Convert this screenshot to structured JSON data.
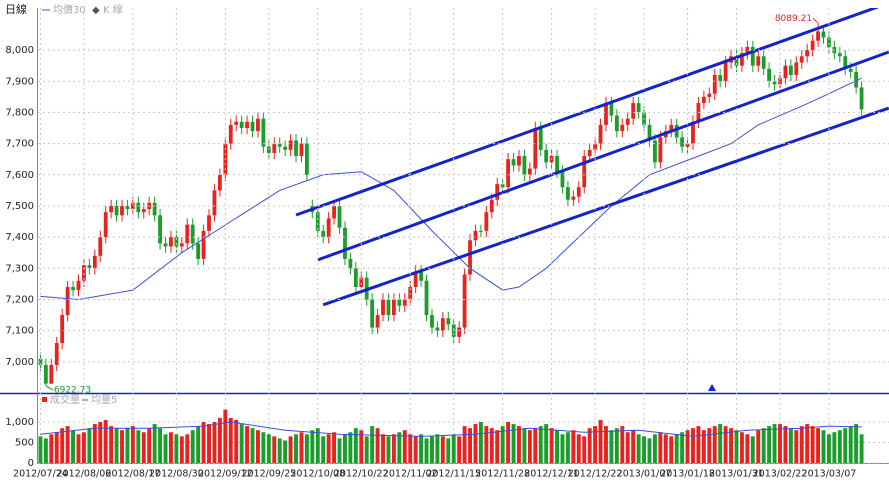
{
  "chart_data": [
    {
      "type": "candlestick",
      "title": "日線",
      "ohlc": {
        "name": "K 線",
        "up_color": "#e8231f",
        "down_color": "#1a9e2a",
        "open": [
          7010,
          6990,
          6930,
          6990,
          7060,
          7150,
          7240,
          7230,
          7260,
          7310,
          7300,
          7340,
          7400,
          7480,
          7500,
          7470,
          7500,
          7490,
          7510,
          7480,
          7490,
          7510,
          7470,
          7380,
          7370,
          7400,
          7370,
          7380,
          7440,
          7380,
          7330,
          7420,
          7470,
          7550,
          7600,
          7700,
          7760,
          7770,
          7750,
          7770,
          7740,
          7780,
          7690,
          7670,
          7700,
          7690,
          7680,
          7710,
          7660,
          7700,
          7500,
          7480,
          7420,
          7400,
          7460,
          7500,
          7430,
          7330,
          7300,
          7240,
          7270,
          7200,
          7110,
          7150,
          7200,
          7150,
          7200,
          7180,
          7200,
          7240,
          7290,
          7260,
          7150,
          7110,
          7100,
          7140,
          7120,
          7080,
          7110,
          7280,
          7390,
          7420,
          7420,
          7480,
          7520,
          7570,
          7560,
          7650,
          7630,
          7660,
          7600,
          7620,
          7750,
          7680,
          7640,
          7660,
          7610,
          7560,
          7520,
          7530,
          7560,
          7660,
          7680,
          7700,
          7760,
          7830,
          7790,
          7740,
          7760,
          7780,
          7830,
          7800,
          7760,
          7710,
          7640,
          7720,
          7740,
          7760,
          7720,
          7690,
          7700,
          7770,
          7830,
          7850,
          7860,
          7920,
          7900,
          7960,
          7980,
          7950,
          7990,
          8010,
          7950,
          7980,
          7940,
          7900,
          7890,
          7910,
          7950,
          7920,
          7960,
          7980,
          8000,
          8030,
          8060,
          8040,
          8010,
          7990,
          7980,
          7940,
          7930,
          7880
        ],
        "high": [
          7030,
          7010,
          7010,
          7080,
          7170,
          7260,
          7260,
          7280,
          7330,
          7330,
          7360,
          7420,
          7500,
          7520,
          7520,
          7520,
          7520,
          7530,
          7530,
          7510,
          7530,
          7530,
          7490,
          7400,
          7420,
          7420,
          7400,
          7460,
          7460,
          7400,
          7440,
          7490,
          7570,
          7620,
          7720,
          7780,
          7790,
          7790,
          7790,
          7790,
          7800,
          7800,
          7710,
          7720,
          7720,
          7710,
          7730,
          7730,
          7720,
          7720,
          7520,
          7500,
          7440,
          7480,
          7520,
          7520,
          7450,
          7350,
          7320,
          7290,
          7290,
          7220,
          7170,
          7220,
          7220,
          7220,
          7220,
          7220,
          7260,
          7310,
          7310,
          7280,
          7170,
          7130,
          7160,
          7160,
          7140,
          7130,
          7300,
          7410,
          7440,
          7440,
          7500,
          7540,
          7590,
          7590,
          7670,
          7670,
          7680,
          7680,
          7640,
          7770,
          7770,
          7700,
          7680,
          7680,
          7630,
          7580,
          7550,
          7580,
          7680,
          7700,
          7720,
          7780,
          7850,
          7850,
          7810,
          7780,
          7800,
          7850,
          7850,
          7820,
          7780,
          7730,
          7740,
          7760,
          7780,
          7780,
          7740,
          7720,
          7790,
          7850,
          7870,
          7880,
          7940,
          7940,
          7980,
          8000,
          8000,
          8010,
          8030,
          8030,
          8000,
          8000,
          7960,
          7920,
          7930,
          7970,
          7970,
          7980,
          8000,
          8020,
          8050,
          8089.21,
          8080,
          8060,
          8030,
          8010,
          8000,
          7960,
          7950,
          7900
        ],
        "low": [
          6970,
          6922.73,
          6930,
          6970,
          7040,
          7130,
          7210,
          7210,
          7240,
          7280,
          7280,
          7320,
          7380,
          7460,
          7450,
          7450,
          7470,
          7470,
          7460,
          7460,
          7470,
          7450,
          7360,
          7350,
          7350,
          7350,
          7350,
          7360,
          7360,
          7310,
          7310,
          7400,
          7450,
          7530,
          7580,
          7680,
          7740,
          7730,
          7730,
          7720,
          7720,
          7670,
          7650,
          7650,
          7670,
          7660,
          7660,
          7640,
          7640,
          7580,
          7460,
          7400,
          7380,
          7380,
          7440,
          7410,
          7310,
          7280,
          7220,
          7220,
          7180,
          7090,
          7090,
          7130,
          7130,
          7130,
          7160,
          7160,
          7180,
          7220,
          7240,
          7130,
          7090,
          7080,
          7080,
          7100,
          7060,
          7060,
          7090,
          7260,
          7370,
          7400,
          7400,
          7460,
          7500,
          7540,
          7540,
          7610,
          7610,
          7580,
          7580,
          7600,
          7660,
          7620,
          7620,
          7590,
          7540,
          7500,
          7500,
          7510,
          7540,
          7640,
          7660,
          7680,
          7740,
          7770,
          7720,
          7720,
          7740,
          7760,
          7780,
          7740,
          7690,
          7620,
          7620,
          7700,
          7720,
          7700,
          7670,
          7670,
          7680,
          7750,
          7810,
          7830,
          7840,
          7880,
          7880,
          7940,
          7930,
          7930,
          7970,
          7930,
          7930,
          7920,
          7880,
          7870,
          7870,
          7890,
          7900,
          7900,
          7940,
          7960,
          7980,
          8010,
          8020,
          7990,
          7970,
          7960,
          7920,
          7910,
          7860,
          7790
        ],
        "close": [
          6990,
          6930,
          6990,
          7060,
          7150,
          7240,
          7230,
          7260,
          7310,
          7300,
          7340,
          7400,
          7480,
          7500,
          7470,
          7500,
          7490,
          7510,
          7480,
          7490,
          7510,
          7470,
          7380,
          7370,
          7400,
          7370,
          7380,
          7440,
          7380,
          7330,
          7420,
          7470,
          7550,
          7600,
          7700,
          7760,
          7770,
          7750,
          7770,
          7740,
          7780,
          7690,
          7670,
          7700,
          7690,
          7680,
          7710,
          7660,
          7700,
          7600,
          7480,
          7420,
          7400,
          7460,
          7500,
          7430,
          7330,
          7300,
          7240,
          7270,
          7200,
          7110,
          7150,
          7200,
          7150,
          7200,
          7180,
          7200,
          7240,
          7290,
          7260,
          7150,
          7110,
          7100,
          7140,
          7120,
          7080,
          7110,
          7280,
          7390,
          7420,
          7420,
          7480,
          7520,
          7570,
          7560,
          7650,
          7630,
          7660,
          7600,
          7620,
          7750,
          7680,
          7640,
          7660,
          7610,
          7560,
          7520,
          7530,
          7560,
          7660,
          7680,
          7700,
          7760,
          7830,
          7790,
          7740,
          7760,
          7780,
          7830,
          7800,
          7760,
          7710,
          7640,
          7720,
          7740,
          7760,
          7720,
          7690,
          7700,
          7770,
          7830,
          7850,
          7860,
          7920,
          7900,
          7960,
          7980,
          7950,
          7990,
          8010,
          7950,
          7980,
          7940,
          7900,
          7890,
          7910,
          7950,
          7920,
          7960,
          7980,
          8000,
          8030,
          8060,
          8040,
          8010,
          7990,
          7980,
          7940,
          7930,
          7880,
          7810
        ]
      },
      "ma": {
        "name": "均價30",
        "color": "#3a4fd8",
        "x": [
          0,
          7,
          17,
          26,
          35,
          44,
          52,
          59,
          65,
          72,
          79,
          85,
          88,
          93,
          99,
          105,
          112,
          121,
          127,
          132,
          140,
          145,
          151
        ],
        "values": [
          7210,
          7200,
          7230,
          7350,
          7450,
          7550,
          7600,
          7610,
          7550,
          7420,
          7300,
          7230,
          7240,
          7300,
          7400,
          7500,
          7600,
          7660,
          7700,
          7760,
          7820,
          7860,
          7910
        ]
      },
      "trendline_color": "#1424c8",
      "trendlines": [
        {
          "x": [
            47,
            156
          ],
          "values": [
            7471,
            8151
          ]
        },
        {
          "x": [
            51,
            156
          ],
          "values": [
            7327,
            7994
          ]
        },
        {
          "x": [
            52,
            156
          ],
          "values": [
            7183,
            7814
          ]
        }
      ],
      "xlim": [
        -1,
        152
      ],
      "ylim": [
        6900,
        8135
      ],
      "yticks": [
        {
          "value": 7000,
          "label": "7,000"
        },
        {
          "value": 7100,
          "label": "7,100"
        },
        {
          "value": 7200,
          "label": "7,200"
        },
        {
          "value": 7300,
          "label": "7,300"
        },
        {
          "value": 7400,
          "label": "7,400"
        },
        {
          "value": 7500,
          "label": "7,500"
        },
        {
          "value": 7600,
          "label": "7,600"
        },
        {
          "value": 7700,
          "label": "7,700"
        },
        {
          "value": 7800,
          "label": "7,800"
        },
        {
          "value": 7900,
          "label": "7,900"
        },
        {
          "value": 8000,
          "label": "8,000"
        }
      ],
      "xticks": [
        {
          "value": 0,
          "label": "2012/07/24"
        },
        {
          "value": 8,
          "label": "2012/08/06"
        },
        {
          "value": 17,
          "label": "2012/08/17"
        },
        {
          "value": 25,
          "label": "2012/08/30"
        },
        {
          "value": 34,
          "label": "2012/09/12"
        },
        {
          "value": 42,
          "label": "2012/09/25"
        },
        {
          "value": 51,
          "label": "2012/10/08"
        },
        {
          "value": 59,
          "label": "2012/10/22"
        },
        {
          "value": 68,
          "label": "2012/11/02"
        },
        {
          "value": 76,
          "label": "2012/11/15"
        },
        {
          "value": 85,
          "label": "2012/11/28"
        },
        {
          "value": 94,
          "label": "2012/12/11"
        },
        {
          "value": 102,
          "label": "2012/12/22"
        },
        {
          "value": 111,
          "label": "2013/01/07"
        },
        {
          "value": 119,
          "label": "2013/01/18"
        },
        {
          "value": 128,
          "label": "2013/01/31"
        },
        {
          "value": 136,
          "label": "2013/02/22"
        },
        {
          "value": 145,
          "label": "2013/03/07"
        }
      ],
      "grid": true
    },
    {
      "type": "volume",
      "name": "成交量",
      "values": [
        650,
        600,
        700,
        750,
        850,
        900,
        800,
        700,
        750,
        850,
        950,
        1000,
        1050,
        900,
        850,
        800,
        850,
        900,
        800,
        750,
        850,
        950,
        850,
        700,
        750,
        700,
        650,
        700,
        800,
        900,
        1000,
        950,
        1000,
        1100,
        1300,
        1100,
        1050,
        950,
        900,
        850,
        800,
        750,
        700,
        650,
        600,
        550,
        650,
        700,
        750,
        700,
        800,
        850,
        650,
        700,
        750,
        600,
        700,
        750,
        850,
        800,
        650,
        900,
        850,
        700,
        650,
        700,
        750,
        800,
        700,
        650,
        700,
        600,
        650,
        700,
        650,
        600,
        700,
        650,
        900,
        850,
        950,
        1000,
        900,
        850,
        800,
        900,
        1000,
        950,
        900,
        850,
        800,
        850,
        900,
        950,
        850,
        800,
        700,
        750,
        800,
        700,
        650,
        850,
        900,
        1050,
        900,
        800,
        850,
        900,
        750,
        800,
        700,
        650,
        600,
        700,
        750,
        700,
        650,
        700,
        750,
        800,
        850,
        900,
        800,
        850,
        900,
        950,
        900,
        850,
        800,
        750,
        700,
        650,
        800,
        850,
        900,
        950,
        950,
        900,
        850,
        800,
        900,
        950,
        900,
        850,
        800,
        700,
        750,
        800,
        850,
        900,
        950,
        700
      ],
      "ma": {
        "name": "均量5",
        "color": "#3a4fd8",
        "x": [
          0,
          10,
          20,
          30,
          35,
          45,
          55,
          70,
          80,
          90,
          100,
          110,
          120,
          130,
          140,
          145,
          151
        ],
        "values": [
          700,
          850,
          850,
          900,
          1000,
          800,
          700,
          650,
          700,
          850,
          750,
          800,
          650,
          800,
          850,
          900,
          880
        ]
      },
      "ylim": [
        0,
        1610
      ],
      "yticks": [
        0,
        500,
        {
          "value": 1000,
          "label": "1,000"
        }
      ],
      "grid": true
    }
  ]
}
